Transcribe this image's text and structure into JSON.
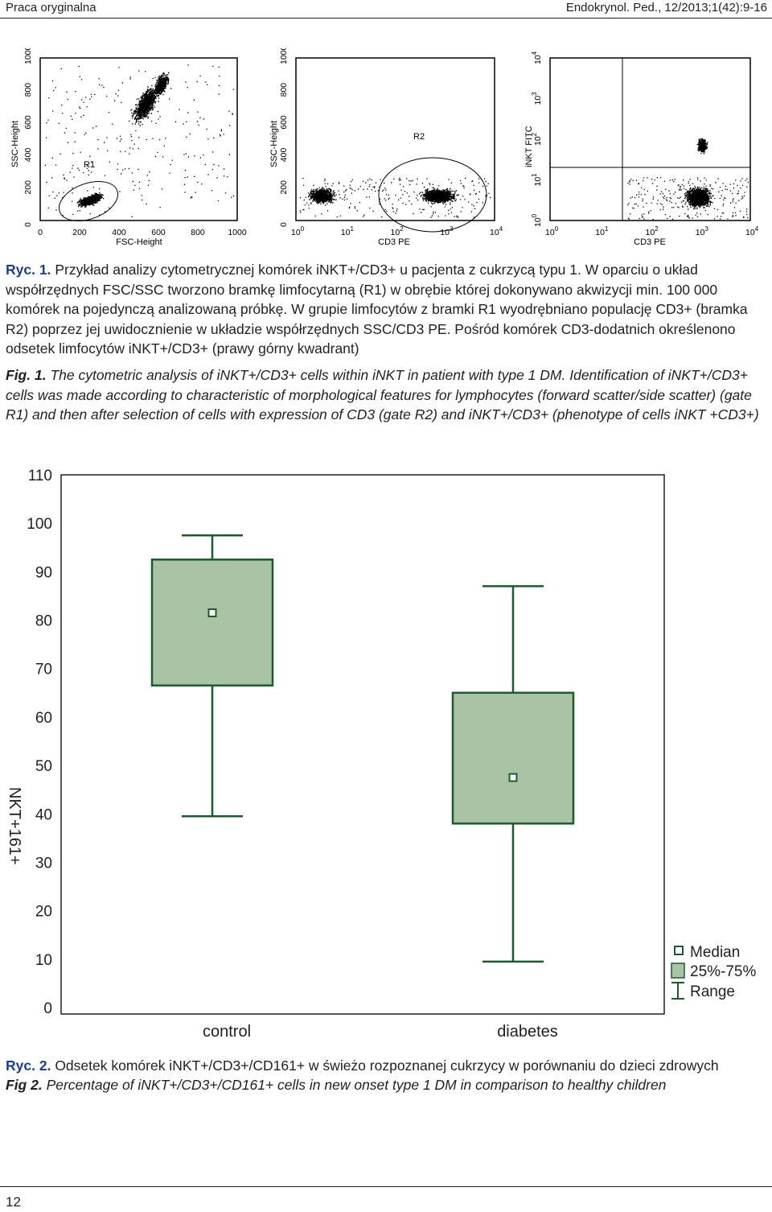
{
  "header": {
    "left": "Praca oryginalna",
    "right": "Endokrynol. Ped., 12/2013;1(42):9-16"
  },
  "figure1": {
    "panel1": {
      "y_axis_label": "SSC-Height",
      "x_axis_label": "FSC-Height",
      "y_ticks": [
        "0",
        "200",
        "400",
        "600",
        "800",
        "1000"
      ],
      "x_ticks": [
        "0",
        "200",
        "400",
        "600",
        "800",
        "1000"
      ],
      "gate": "R1"
    },
    "panel2": {
      "y_axis_label": "SSC-Height",
      "x_axis_label": "CD3 PE",
      "y_ticks": [
        "0",
        "200",
        "400",
        "600",
        "800",
        "1000"
      ],
      "x_ticks": [
        "0",
        "1",
        "2",
        "3",
        "4"
      ],
      "x_tick_base": "10",
      "gate": "R2"
    },
    "panel3": {
      "y_axis_label": "iNKT FITC",
      "x_axis_label": "CD3 PE",
      "y_ticks": [
        "0",
        "1",
        "2",
        "3",
        "4"
      ],
      "x_ticks": [
        "0",
        "1",
        "2",
        "3",
        "4"
      ],
      "tick_base": "10"
    }
  },
  "caption1": {
    "pl_label": "Ryc. 1.",
    "pl_text": "Przykład analizy cytometrycznej komórek iNKT+/CD3+ u pacjenta z cukrzycą typu 1. W oparciu o układ współrzędnych FSC/SSC tworzono bramkę limfocytarną (R1) w obrębie której dokonywano akwizycji min. 100 000 komórek na pojedynczą analizowaną próbkę. W grupie limfocytów z bramki R1 wyodrębniano populację CD3+ (bramka R2) poprzez jej uwidocznienie w układzie współrzędnych SSC/CD3 PE. Pośród komórek CD3-dodatnich określenono odsetek limfocytów iNKT+/CD3+ (prawy górny kwadrant)",
    "en_label": "Fig. 1.",
    "en_text": "The cytometric analysis of iNKT+/CD3+ cells within iNKT in patient with type 1 DM. Identification of iNKT+/CD3+ cells was made according to characteristic of morphological features for lymphocytes (forward scatter/side scatter) (gate R1) and then after selection of cells with expression of CD3 (gate R2) and iNKT+/CD3+ (phenotype of cells iNKT +CD3+)"
  },
  "chart_data": {
    "type": "box",
    "ylabel": "NKT+161+",
    "xlabel": "",
    "ylim": [
      0,
      110
    ],
    "yticks": [
      0,
      10,
      20,
      30,
      40,
      50,
      60,
      70,
      80,
      90,
      100,
      110
    ],
    "categories": [
      "control",
      "diabetes"
    ],
    "boxes": [
      {
        "name": "control",
        "min": 39.5,
        "q1": 66.5,
        "median": 81.5,
        "q3": 92.5,
        "max": 97.5
      },
      {
        "name": "diabetes",
        "min": 9.5,
        "q1": 38,
        "median": 47.5,
        "q3": 65,
        "max": 87
      }
    ],
    "legend": [
      "Median",
      "25%-75%",
      "Range"
    ],
    "legend_position": "bottom-right",
    "box_fill": "#a9c3a4",
    "line_color": "#1a5c2e"
  },
  "caption2": {
    "pl_label": "Ryc. 2.",
    "pl_text": "Odsetek komórek iNKT+/CD3+/CD161+ w świeżo rozpoznanej cukrzycy w porównaniu do dzieci zdrowych",
    "en_label": "Fig 2.",
    "en_text": "Percentage of iNKT+/CD3+/CD161+ cells in new onset type 1 DM in comparison to healthy children"
  },
  "footer": {
    "page_number": "12"
  }
}
